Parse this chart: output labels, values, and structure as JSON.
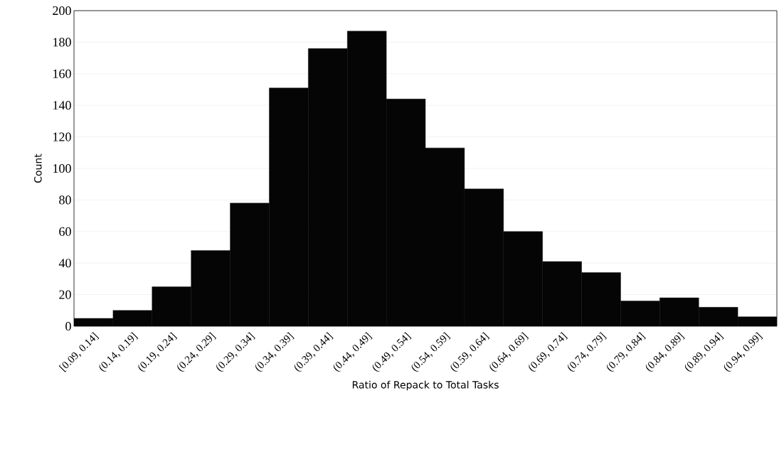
{
  "chart_data": {
    "type": "bar",
    "xlabel": "Ratio of Repack to Total Tasks",
    "ylabel": "Count",
    "categories": [
      "[0.09, 0.14]",
      "(0.14, 0.19]",
      "(0.19, 0.24]",
      "(0.24, 0.29]",
      "(0.29, 0.34]",
      "(0.34, 0.39]",
      "(0.39, 0.44]",
      "(0.44, 0.49]",
      "(0.49, 0.54]",
      "(0.54, 0.59]",
      "(0.59, 0.64]",
      "(0.64, 0.69]",
      "(0.69, 0.74]",
      "(0.74, 0.79]",
      "(0.79, 0.84]",
      "(0.84, 0.89]",
      "(0.89, 0.94]",
      "(0.94, 0.99]"
    ],
    "values": [
      5,
      10,
      25,
      48,
      78,
      151,
      176,
      187,
      144,
      113,
      87,
      60,
      41,
      34,
      16,
      18,
      12,
      6
    ],
    "color": "#050505",
    "ylim": [
      0,
      200
    ],
    "yticks": [
      0,
      20,
      40,
      60,
      80,
      100,
      120,
      140,
      160,
      180,
      200
    ],
    "grid": "y"
  }
}
